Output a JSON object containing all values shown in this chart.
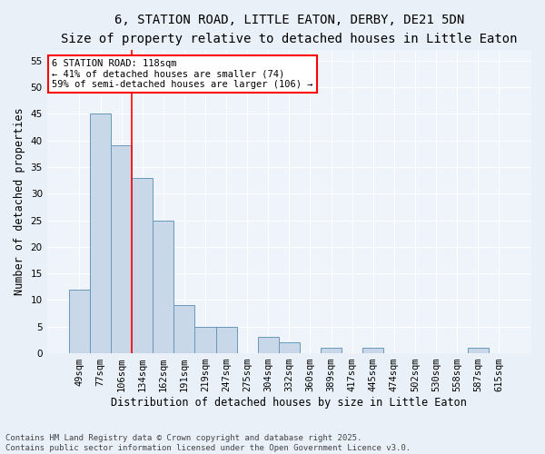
{
  "title_line1": "6, STATION ROAD, LITTLE EATON, DERBY, DE21 5DN",
  "title_line2": "Size of property relative to detached houses in Little Eaton",
  "xlabel": "Distribution of detached houses by size in Little Eaton",
  "ylabel": "Number of detached properties",
  "categories": [
    "49sqm",
    "77sqm",
    "106sqm",
    "134sqm",
    "162sqm",
    "191sqm",
    "219sqm",
    "247sqm",
    "275sqm",
    "304sqm",
    "332sqm",
    "360sqm",
    "389sqm",
    "417sqm",
    "445sqm",
    "474sqm",
    "502sqm",
    "530sqm",
    "558sqm",
    "587sqm",
    "615sqm"
  ],
  "values": [
    12,
    45,
    39,
    33,
    25,
    9,
    5,
    5,
    0,
    3,
    2,
    0,
    1,
    0,
    1,
    0,
    0,
    0,
    0,
    1,
    0
  ],
  "bar_color": "#c8d8e8",
  "bar_edge_color": "#6699bb",
  "bar_edge_width": 0.7,
  "red_line_x": 2.5,
  "annotation_line1": "6 STATION ROAD: 118sqm",
  "annotation_line2": "← 41% of detached houses are smaller (74)",
  "annotation_line3": "59% of semi-detached houses are larger (106) →",
  "annotation_box_color": "white",
  "annotation_box_edge": "red",
  "red_line_color": "red",
  "ylim": [
    0,
    57
  ],
  "yticks": [
    0,
    5,
    10,
    15,
    20,
    25,
    30,
    35,
    40,
    45,
    50,
    55
  ],
  "footer": "Contains HM Land Registry data © Crown copyright and database right 2025.\nContains public sector information licensed under the Open Government Licence v3.0.",
  "bg_color": "#eaf0f8",
  "plot_bg_color": "#eef4fa",
  "grid_color": "#ffffff",
  "title_fontsize": 10,
  "subtitle_fontsize": 9,
  "axis_label_fontsize": 8.5,
  "tick_fontsize": 7.5,
  "annotation_fontsize": 7.5,
  "footer_fontsize": 6.5
}
